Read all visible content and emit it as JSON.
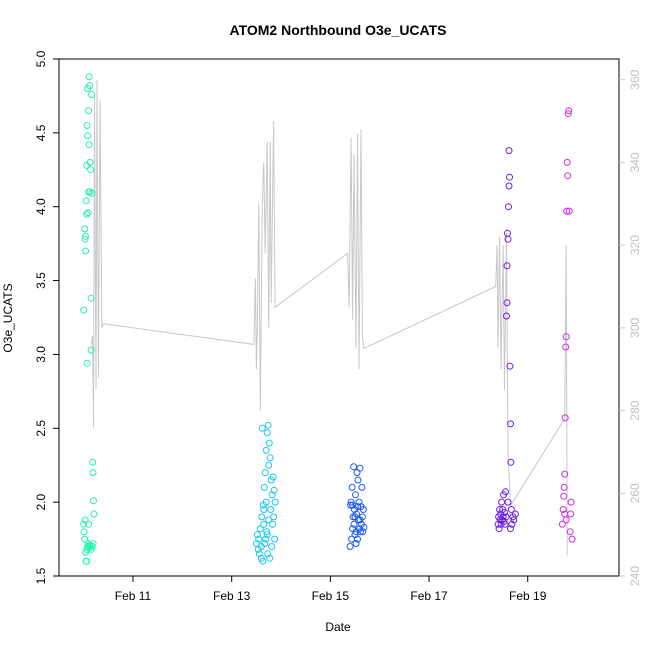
{
  "chart_data": {
    "type": "scatter",
    "title": "ATOM2 Northbound O3e_UCATS",
    "xlabel": "Date",
    "ylabel": "O3e_UCATS",
    "x_unit": "days (Feb 2017)",
    "xlim": [
      9.5,
      20.85
    ],
    "ylim": [
      1.5,
      5.0
    ],
    "y2lim": [
      240,
      365
    ],
    "x_ticks": [
      {
        "value": 11,
        "label": "Feb 11"
      },
      {
        "value": 13,
        "label": "Feb 13"
      },
      {
        "value": 15,
        "label": "Feb 15"
      },
      {
        "value": 17,
        "label": "Feb 17"
      },
      {
        "value": 19,
        "label": "Feb 19"
      }
    ],
    "y_ticks": [
      "1.5",
      "2.0",
      "2.5",
      "3.0",
      "3.5",
      "4.0",
      "4.5",
      "5.0"
    ],
    "y2_ticks": [
      "240",
      "260",
      "280",
      "300",
      "320",
      "340",
      "360"
    ],
    "secondary_series": {
      "style": "line",
      "color": "#c8c8c8",
      "points": [
        [
          10.15,
          296
        ],
        [
          10.18,
          298
        ],
        [
          10.2,
          276
        ],
        [
          10.22,
          356
        ],
        [
          10.25,
          285
        ],
        [
          10.27,
          360
        ],
        [
          10.3,
          288
        ],
        [
          10.33,
          355
        ],
        [
          10.37,
          300
        ],
        [
          10.4,
          301
        ],
        [
          13.45,
          296
        ],
        [
          13.48,
          312
        ],
        [
          13.5,
          290
        ],
        [
          13.52,
          300
        ],
        [
          13.55,
          330
        ],
        [
          13.58,
          280
        ],
        [
          13.62,
          330
        ],
        [
          13.65,
          340
        ],
        [
          13.68,
          318
        ],
        [
          13.72,
          345
        ],
        [
          13.75,
          300
        ],
        [
          13.78,
          345
        ],
        [
          13.8,
          306
        ],
        [
          13.85,
          350
        ],
        [
          13.88,
          305
        ],
        [
          15.35,
          318
        ],
        [
          15.38,
          305
        ],
        [
          15.42,
          346
        ],
        [
          15.45,
          302
        ],
        [
          15.48,
          342
        ],
        [
          15.52,
          295
        ],
        [
          15.55,
          347
        ],
        [
          15.58,
          290
        ],
        [
          15.62,
          348
        ],
        [
          15.65,
          298
        ],
        [
          15.68,
          295
        ],
        [
          18.35,
          310
        ],
        [
          18.38,
          320
        ],
        [
          18.4,
          295
        ],
        [
          18.43,
          322
        ],
        [
          18.46,
          290
        ],
        [
          18.5,
          320
        ],
        [
          18.53,
          285
        ],
        [
          18.57,
          323
        ],
        [
          18.6,
          270
        ],
        [
          18.62,
          265
        ],
        [
          18.65,
          257
        ],
        [
          19.75,
          278
        ],
        [
          19.78,
          320
        ],
        [
          19.8,
          245
        ]
      ]
    },
    "series": [
      {
        "color": "#22f5b0",
        "points": [
          [
            10.0,
            3.3
          ],
          [
            10.02,
            3.85
          ],
          [
            10.03,
            3.78
          ],
          [
            10.04,
            3.7
          ],
          [
            10.04,
            3.8
          ],
          [
            10.05,
            4.04
          ],
          [
            10.06,
            3.95
          ],
          [
            10.06,
            4.28
          ],
          [
            10.07,
            4.55
          ],
          [
            10.07,
            2.94
          ],
          [
            10.08,
            4.48
          ],
          [
            10.08,
            4.8
          ],
          [
            10.09,
            3.96
          ],
          [
            10.1,
            4.65
          ],
          [
            10.1,
            4.1
          ],
          [
            10.11,
            4.88
          ],
          [
            10.11,
            4.42
          ],
          [
            10.12,
            4.82
          ],
          [
            10.13,
            4.3
          ],
          [
            10.13,
            4.1
          ],
          [
            10.14,
            4.25
          ],
          [
            10.15,
            3.38
          ],
          [
            10.15,
            3.03
          ],
          [
            10.16,
            4.76
          ],
          [
            10.17,
            4.09
          ],
          [
            10.18,
            2.27
          ],
          [
            10.19,
            2.2
          ],
          [
            10.2,
            2.01
          ],
          [
            10.21,
            1.92
          ],
          [
            10.0,
            1.85
          ],
          [
            10.01,
            1.8
          ],
          [
            10.02,
            1.75
          ],
          [
            10.03,
            1.88
          ],
          [
            10.04,
            1.66
          ],
          [
            10.05,
            1.6
          ],
          [
            10.06,
            1.6
          ],
          [
            10.07,
            1.68
          ],
          [
            10.08,
            1.7
          ],
          [
            10.09,
            1.72
          ],
          [
            10.1,
            1.85
          ],
          [
            10.11,
            1.69
          ],
          [
            10.12,
            1.71
          ],
          [
            10.13,
            1.7
          ],
          [
            10.15,
            1.68
          ],
          [
            10.17,
            1.7
          ],
          [
            10.19,
            1.72
          ]
        ]
      },
      {
        "color": "#19c8f0",
        "points": [
          [
            13.5,
            1.72
          ],
          [
            13.52,
            1.78
          ],
          [
            13.54,
            1.68
          ],
          [
            13.55,
            1.75
          ],
          [
            13.56,
            1.65
          ],
          [
            13.58,
            1.82
          ],
          [
            13.6,
            1.7
          ],
          [
            13.61,
            1.9
          ],
          [
            13.62,
            2.5
          ],
          [
            13.63,
            1.6
          ],
          [
            13.64,
            1.98
          ],
          [
            13.65,
            1.85
          ],
          [
            13.66,
            2.1
          ],
          [
            13.67,
            1.72
          ],
          [
            13.68,
            2.2
          ],
          [
            13.69,
            1.75
          ],
          [
            13.7,
            2.35
          ],
          [
            13.71,
            1.8
          ],
          [
            13.72,
            2.47
          ],
          [
            13.73,
            1.65
          ],
          [
            13.74,
            2.52
          ],
          [
            13.75,
            1.88
          ],
          [
            13.76,
            2.4
          ],
          [
            13.77,
            1.62
          ],
          [
            13.78,
            2.3
          ],
          [
            13.79,
            1.95
          ],
          [
            13.8,
            2.15
          ],
          [
            13.81,
            1.7
          ],
          [
            13.82,
            2.05
          ],
          [
            13.83,
            1.85
          ],
          [
            13.84,
            2.17
          ],
          [
            13.85,
            1.9
          ],
          [
            13.86,
            2.08
          ],
          [
            13.87,
            1.75
          ],
          [
            13.88,
            2.0
          ],
          [
            13.7,
            2.0
          ],
          [
            13.75,
            2.25
          ],
          [
            13.65,
            1.95
          ],
          [
            13.6,
            1.62
          ],
          [
            13.72,
            1.78
          ]
        ]
      },
      {
        "color": "#1e5af0",
        "points": [
          [
            15.4,
            1.7
          ],
          [
            15.41,
            1.98
          ],
          [
            15.42,
            2.0
          ],
          [
            15.43,
            1.75
          ],
          [
            15.44,
            2.1
          ],
          [
            15.45,
            1.82
          ],
          [
            15.46,
            1.9
          ],
          [
            15.47,
            2.24
          ],
          [
            15.48,
            1.85
          ],
          [
            15.49,
            1.95
          ],
          [
            15.5,
            1.78
          ],
          [
            15.51,
            2.05
          ],
          [
            15.52,
            1.8
          ],
          [
            15.53,
            1.92
          ],
          [
            15.54,
            2.2
          ],
          [
            15.55,
            1.75
          ],
          [
            15.56,
            2.15
          ],
          [
            15.57,
            1.88
          ],
          [
            15.58,
            2.0
          ],
          [
            15.59,
            1.82
          ],
          [
            15.6,
            2.23
          ],
          [
            15.61,
            1.8
          ],
          [
            15.62,
            1.97
          ],
          [
            15.63,
            1.85
          ],
          [
            15.64,
            2.1
          ],
          [
            15.65,
            1.9
          ],
          [
            15.66,
            1.8
          ],
          [
            15.67,
            1.95
          ],
          [
            15.68,
            1.83
          ],
          [
            15.52,
            1.72
          ],
          [
            15.45,
            1.98
          ],
          [
            15.55,
            1.97
          ],
          [
            15.6,
            1.88
          ],
          [
            15.5,
            1.9
          ]
        ]
      },
      {
        "color": "#6d1ee6",
        "points": [
          [
            18.4,
            1.85
          ],
          [
            18.41,
            1.9
          ],
          [
            18.42,
            1.82
          ],
          [
            18.43,
            1.95
          ],
          [
            18.44,
            1.88
          ],
          [
            18.45,
            1.92
          ],
          [
            18.46,
            1.85
          ],
          [
            18.47,
            2.0
          ],
          [
            18.48,
            1.88
          ],
          [
            18.49,
            1.95
          ],
          [
            18.5,
            1.9
          ],
          [
            18.51,
            2.05
          ],
          [
            18.52,
            1.87
          ],
          [
            18.53,
            1.93
          ],
          [
            18.54,
            1.85
          ],
          [
            18.55,
            2.07
          ],
          [
            18.56,
            1.9
          ],
          [
            18.57,
            3.26
          ],
          [
            18.58,
            3.35
          ],
          [
            18.58,
            3.6
          ],
          [
            18.59,
            3.82
          ],
          [
            18.6,
            3.78
          ],
          [
            18.61,
            4.0
          ],
          [
            18.62,
            4.14
          ],
          [
            18.62,
            4.38
          ],
          [
            18.63,
            4.2
          ],
          [
            18.64,
            2.92
          ],
          [
            18.65,
            2.53
          ],
          [
            18.66,
            2.27
          ],
          [
            18.67,
            1.95
          ],
          [
            18.68,
            1.85
          ],
          [
            18.7,
            1.9
          ],
          [
            18.72,
            1.88
          ],
          [
            18.75,
            1.92
          ],
          [
            18.6,
            2.0
          ],
          [
            18.65,
            1.82
          ]
        ]
      },
      {
        "color": "#d22ee6",
        "points": [
          [
            19.7,
            1.85
          ],
          [
            19.72,
            1.95
          ],
          [
            19.73,
            2.04
          ],
          [
            19.74,
            2.1
          ],
          [
            19.75,
            2.19
          ],
          [
            19.76,
            2.57
          ],
          [
            19.77,
            3.05
          ],
          [
            19.78,
            3.12
          ],
          [
            19.79,
            3.97
          ],
          [
            19.8,
            4.3
          ],
          [
            19.81,
            4.21
          ],
          [
            19.82,
            4.63
          ],
          [
            19.83,
            4.65
          ],
          [
            19.84,
            3.97
          ],
          [
            19.86,
            1.8
          ],
          [
            19.87,
            1.92
          ],
          [
            19.88,
            2.0
          ],
          [
            19.9,
            1.75
          ],
          [
            19.78,
            1.88
          ],
          [
            19.75,
            1.92
          ]
        ]
      }
    ]
  }
}
